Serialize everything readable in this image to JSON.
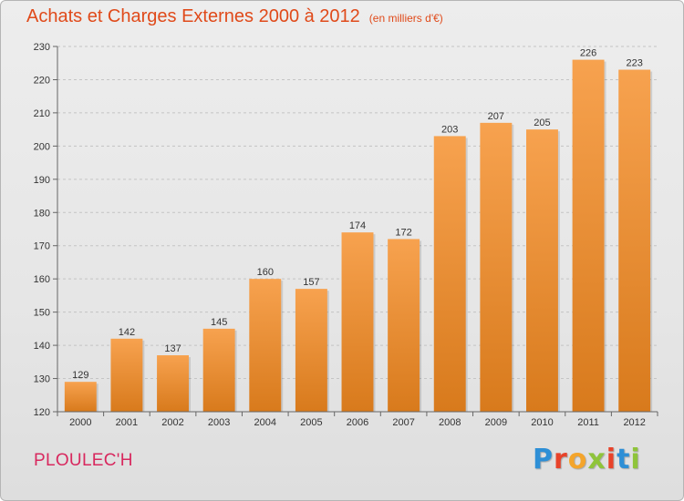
{
  "header": {
    "title": "Achats et Charges Externes 2000 à 2012",
    "subtitle": "(en milliers d'€)"
  },
  "commune": "PLOULEC'H",
  "logo": {
    "text": "Proxiti",
    "letters": [
      {
        "ch": "P",
        "color": "#2e8fd6"
      },
      {
        "ch": "r",
        "color": "#e8432a"
      },
      {
        "ch": "o",
        "color": "#f4a52c"
      },
      {
        "ch": "x",
        "color": "#8fc43a"
      },
      {
        "ch": "i",
        "color": "#e8432a"
      },
      {
        "ch": "t",
        "color": "#2e8fd6"
      },
      {
        "ch": "i",
        "color": "#8fc43a"
      }
    ]
  },
  "colors": {
    "bar_top": "#f7a24f",
    "bar_bottom": "#d87a1c",
    "title": "#e04a1a",
    "commune": "#d8285e"
  },
  "chart_data": {
    "type": "bar",
    "title": "Achats et Charges Externes 2000 à 2012",
    "subtitle": "(en milliers d'€)",
    "categories": [
      "2000",
      "2001",
      "2002",
      "2003",
      "2004",
      "2005",
      "2006",
      "2007",
      "2008",
      "2009",
      "2010",
      "2011",
      "2012"
    ],
    "values": [
      129,
      142,
      137,
      145,
      160,
      157,
      174,
      172,
      203,
      207,
      205,
      226,
      223
    ],
    "ylim": [
      120,
      230
    ],
    "yticks": [
      120,
      130,
      140,
      150,
      160,
      170,
      180,
      190,
      200,
      210,
      220,
      230
    ],
    "grid": true,
    "xlabel": "",
    "ylabel": ""
  }
}
